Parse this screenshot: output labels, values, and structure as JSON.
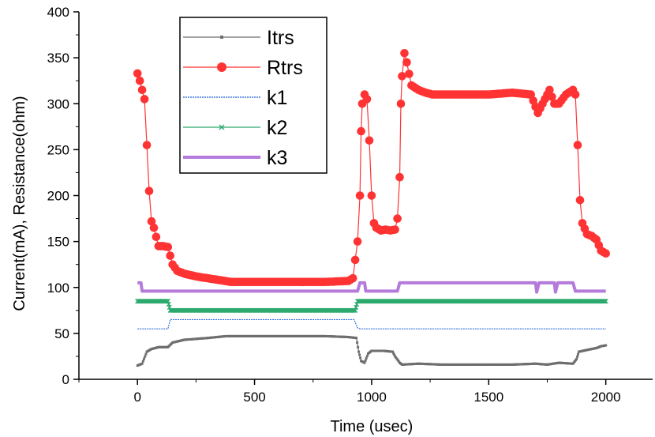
{
  "chart_data": {
    "type": "line",
    "title": "",
    "xlabel": "Time (usec)",
    "ylabel": "Current(mA), Resistance(ohm)",
    "xlim": [
      -250,
      2200
    ],
    "ylim": [
      0,
      400
    ],
    "xticks": [
      0,
      500,
      1000,
      1500,
      2000
    ],
    "yticks": [
      0,
      50,
      100,
      150,
      200,
      250,
      300,
      350,
      400
    ],
    "grid": false,
    "legend_position": "top-left",
    "series": [
      {
        "name": "Itrs",
        "color": "#6e6e6e",
        "style": "line-small-square",
        "points": [
          [
            0,
            15
          ],
          [
            20,
            17
          ],
          [
            40,
            30
          ],
          [
            60,
            33
          ],
          [
            90,
            35
          ],
          [
            130,
            35
          ],
          [
            150,
            40
          ],
          [
            200,
            43
          ],
          [
            300,
            45
          ],
          [
            380,
            47
          ],
          [
            500,
            47
          ],
          [
            700,
            47
          ],
          [
            800,
            47
          ],
          [
            900,
            46
          ],
          [
            935,
            45
          ],
          [
            945,
            30
          ],
          [
            955,
            20
          ],
          [
            970,
            18
          ],
          [
            985,
            28
          ],
          [
            1000,
            31
          ],
          [
            1050,
            31
          ],
          [
            1090,
            30
          ],
          [
            1100,
            25
          ],
          [
            1120,
            18
          ],
          [
            1130,
            16
          ],
          [
            1200,
            17
          ],
          [
            1300,
            16
          ],
          [
            1400,
            16
          ],
          [
            1500,
            16
          ],
          [
            1600,
            16
          ],
          [
            1700,
            17
          ],
          [
            1750,
            16
          ],
          [
            1800,
            18
          ],
          [
            1860,
            17
          ],
          [
            1875,
            22
          ],
          [
            1885,
            30
          ],
          [
            1920,
            32
          ],
          [
            1960,
            34
          ],
          [
            1980,
            36
          ],
          [
            2000,
            37
          ]
        ]
      },
      {
        "name": "Rtrs",
        "color": "#ff3333",
        "style": "line-large-circle",
        "points": [
          [
            0,
            333
          ],
          [
            10,
            325
          ],
          [
            20,
            315
          ],
          [
            30,
            305
          ],
          [
            40,
            255
          ],
          [
            50,
            205
          ],
          [
            60,
            172
          ],
          [
            70,
            165
          ],
          [
            80,
            155
          ],
          [
            90,
            145
          ],
          [
            110,
            145
          ],
          [
            130,
            144
          ],
          [
            150,
            125
          ],
          [
            170,
            118
          ],
          [
            200,
            115
          ],
          [
            250,
            112
          ],
          [
            300,
            110
          ],
          [
            350,
            108
          ],
          [
            400,
            106
          ],
          [
            500,
            106
          ],
          [
            600,
            106
          ],
          [
            700,
            106
          ],
          [
            800,
            106
          ],
          [
            900,
            107
          ],
          [
            920,
            110
          ],
          [
            930,
            130
          ],
          [
            940,
            150
          ],
          [
            950,
            200
          ],
          [
            955,
            270
          ],
          [
            960,
            300
          ],
          [
            970,
            310
          ],
          [
            980,
            305
          ],
          [
            990,
            260
          ],
          [
            1000,
            200
          ],
          [
            1010,
            170
          ],
          [
            1020,
            165
          ],
          [
            1040,
            162
          ],
          [
            1060,
            163
          ],
          [
            1080,
            162
          ],
          [
            1100,
            163
          ],
          [
            1110,
            175
          ],
          [
            1120,
            220
          ],
          [
            1125,
            300
          ],
          [
            1130,
            330
          ],
          [
            1140,
            355
          ],
          [
            1150,
            345
          ],
          [
            1170,
            320
          ],
          [
            1200,
            315
          ],
          [
            1230,
            312
          ],
          [
            1260,
            310
          ],
          [
            1300,
            310
          ],
          [
            1400,
            310
          ],
          [
            1500,
            310
          ],
          [
            1600,
            312
          ],
          [
            1680,
            310
          ],
          [
            1710,
            290
          ],
          [
            1730,
            300
          ],
          [
            1760,
            315
          ],
          [
            1780,
            300
          ],
          [
            1800,
            300
          ],
          [
            1830,
            310
          ],
          [
            1860,
            315
          ],
          [
            1870,
            310
          ],
          [
            1880,
            255
          ],
          [
            1890,
            195
          ],
          [
            1900,
            170
          ],
          [
            1920,
            158
          ],
          [
            1940,
            156
          ],
          [
            1960,
            152
          ],
          [
            1980,
            140
          ],
          [
            2000,
            137
          ]
        ]
      },
      {
        "name": "k1",
        "color": "#1a5fd6",
        "style": "line-thin",
        "points": [
          [
            0,
            55
          ],
          [
            130,
            55
          ],
          [
            140,
            65
          ],
          [
            500,
            65
          ],
          [
            900,
            65
          ],
          [
            925,
            65
          ],
          [
            940,
            56
          ],
          [
            950,
            55
          ],
          [
            1200,
            55
          ],
          [
            1600,
            55
          ],
          [
            2000,
            55
          ]
        ]
      },
      {
        "name": "k2",
        "color": "#2daa6e",
        "style": "line-small-x",
        "points": [
          [
            0,
            85
          ],
          [
            130,
            85
          ],
          [
            140,
            75
          ],
          [
            500,
            75
          ],
          [
            930,
            75
          ],
          [
            940,
            85
          ],
          [
            1200,
            85
          ],
          [
            1600,
            85
          ],
          [
            2000,
            85
          ]
        ]
      },
      {
        "name": "k3",
        "color": "#b57bdb",
        "style": "line-thick",
        "points": [
          [
            0,
            105
          ],
          [
            15,
            105
          ],
          [
            20,
            96
          ],
          [
            500,
            96
          ],
          [
            900,
            96
          ],
          [
            940,
            96
          ],
          [
            950,
            105
          ],
          [
            970,
            105
          ],
          [
            975,
            96
          ],
          [
            1100,
            96
          ],
          [
            1110,
            96
          ],
          [
            1120,
            105
          ],
          [
            1500,
            105
          ],
          [
            1700,
            105
          ],
          [
            1705,
            95
          ],
          [
            1715,
            105
          ],
          [
            1780,
            105
          ],
          [
            1785,
            95
          ],
          [
            1795,
            105
          ],
          [
            1860,
            105
          ],
          [
            1870,
            96
          ],
          [
            2000,
            96
          ]
        ]
      }
    ]
  }
}
